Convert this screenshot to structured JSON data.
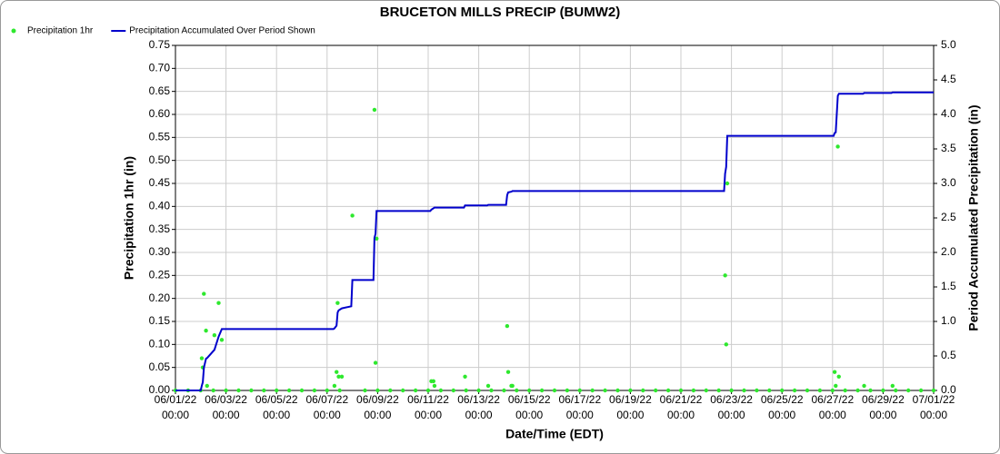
{
  "chart_data": {
    "type": "scatter-line",
    "title": "BRUCETON MILLS PRECIP (BUMW2)",
    "x_label": "Date/Time (EDT)",
    "y_label": "Precipitation 1hr (in)",
    "y2_label": "Period Accumulated Precipitation (in)",
    "grid": true,
    "legend": "top-left",
    "xlim": [
      "06/01/22 00:00",
      "07/01/22 00:00"
    ],
    "xticks": [
      "06/01/22 00:00",
      "06/03/22 00:00",
      "06/05/22 00:00",
      "06/07/22 00:00",
      "06/09/22 00:00",
      "06/11/22 00:00",
      "06/13/22 00:00",
      "06/15/22 00:00",
      "06/17/22 00:00",
      "06/19/22 00:00",
      "06/21/22 00:00",
      "06/23/22 00:00",
      "06/25/22 00:00",
      "06/27/22 00:00",
      "06/29/22 00:00",
      "07/01/22 00:00"
    ],
    "ylim": [
      0,
      0.75
    ],
    "yticks": [
      {
        "value": 0,
        "label": "0.00"
      },
      0.05,
      {
        "value": 0.1,
        "label": "0.10"
      },
      0.15,
      {
        "value": 0.2,
        "label": "0.20"
      },
      0.25,
      {
        "value": 0.3,
        "label": "0.30"
      },
      0.35,
      {
        "value": 0.4,
        "label": "0.40"
      },
      0.45,
      {
        "value": 0.5,
        "label": "0.50"
      },
      0.55,
      {
        "value": 0.6,
        "label": "0.60"
      },
      0.65,
      {
        "value": 0.7,
        "label": "0.70"
      },
      0.75
    ],
    "y2lim": [
      0,
      5
    ],
    "y2ticks": [
      {
        "value": 0,
        "label": "0.0"
      },
      0.5,
      {
        "value": 1,
        "label": "1.0"
      },
      1.5,
      {
        "value": 2,
        "label": "2.0"
      },
      2.5,
      {
        "value": 3,
        "label": "3.0"
      },
      3.5,
      {
        "value": 4,
        "label": "4.0"
      },
      4.5,
      {
        "value": 5,
        "label": "5.0"
      }
    ],
    "series": [
      {
        "name": "Precipitation 1hr",
        "type": "scatter",
        "color": "#2ee82e",
        "x": [
          "06/01/22 00:00",
          "06/01/22 12:00",
          "06/02/22 00:00",
          "06/02/22 12:00",
          "06/03/22 00:00",
          "06/03/22 12:00",
          "06/04/22 00:00",
          "06/04/22 12:00",
          "06/05/22 00:00",
          "06/05/22 12:00",
          "06/06/22 00:00",
          "06/06/22 12:00",
          "06/07/22 00:00",
          "06/07/22 12:00",
          "06/08/22 12:00",
          "06/09/22 00:00",
          "06/09/22 12:00",
          "06/10/22 00:00",
          "06/10/22 12:00",
          "06/11/22 00:00",
          "06/11/22 12:00",
          "06/12/22 00:00",
          "06/12/22 12:00",
          "06/13/22 00:00",
          "06/13/22 12:00",
          "06/14/22 00:00",
          "06/14/22 12:00",
          "06/15/22 00:00",
          "06/15/22 12:00",
          "06/16/22 00:00",
          "06/16/22 12:00",
          "06/17/22 00:00",
          "06/17/22 12:00",
          "06/18/22 00:00",
          "06/18/22 12:00",
          "06/19/22 00:00",
          "06/19/22 12:00",
          "06/20/22 00:00",
          "06/20/22 12:00",
          "06/21/22 00:00",
          "06/21/22 12:00",
          "06/22/22 00:00",
          "06/22/22 12:00",
          "06/23/22 00:00",
          "06/23/22 12:00",
          "06/24/22 00:00",
          "06/24/22 12:00",
          "06/25/22 00:00",
          "06/25/22 12:00",
          "06/26/22 00:00",
          "06/26/22 12:00",
          "06/27/22 00:00",
          "06/27/22 12:00",
          "06/28/22 00:00",
          "06/28/22 12:00",
          "06/29/22 00:00",
          "06/29/22 12:00",
          "06/30/22 00:00",
          "06/30/22 12:00",
          "07/01/22 00:00",
          "06/02/22 01:00",
          "06/02/22 02:00",
          "06/02/22 03:00",
          "06/02/22 05:00",
          "06/02/22 06:00",
          "06/02/22 13:00",
          "06/02/22 17:00",
          "06/02/22 20:00",
          "06/07/22 07:00",
          "06/07/22 09:00",
          "06/07/22 10:00",
          "06/07/22 11:00",
          "06/07/22 14:00",
          "06/08/22 00:00",
          "06/08/22 21:00",
          "06/08/22 22:00",
          "06/08/22 23:00",
          "06/11/22 03:00",
          "06/11/22 05:00",
          "06/11/22 06:00",
          "06/12/22 11:00",
          "06/13/22 09:00",
          "06/14/22 03:00",
          "06/14/22 04:00",
          "06/14/22 07:00",
          "06/14/22 08:00",
          "06/22/22 18:00",
          "06/22/22 19:00",
          "06/22/22 20:00",
          "06/27/22 02:00",
          "06/27/22 03:00",
          "06/27/22 05:00",
          "06/27/22 06:00",
          "06/28/22 06:00",
          "06/29/22 09:00"
        ],
        "values": [
          0,
          0,
          0,
          0,
          0,
          0,
          0,
          0,
          0,
          0,
          0,
          0,
          0,
          0,
          0,
          0,
          0,
          0,
          0,
          0,
          0,
          0,
          0,
          0,
          0,
          0,
          0,
          0,
          0,
          0,
          0,
          0,
          0,
          0,
          0,
          0,
          0,
          0,
          0,
          0,
          0,
          0,
          0,
          0,
          0,
          0,
          0,
          0,
          0,
          0,
          0,
          0,
          0,
          0,
          0,
          0,
          0,
          0,
          0,
          0,
          0.07,
          0.05,
          0.21,
          0.13,
          0.01,
          0.12,
          0.19,
          0.11,
          0.01,
          0.04,
          0.19,
          0.03,
          0.03,
          0.38,
          0.61,
          0.06,
          0.33,
          0.02,
          0.02,
          0.01,
          0.03,
          0.01,
          0.14,
          0.04,
          0.01,
          0.01,
          0.25,
          0.1,
          0.45,
          0.04,
          0.01,
          0.53,
          0.03,
          0.01,
          0.01
        ]
      },
      {
        "name": "Precipitation Accumulated Over Period Shown",
        "type": "line",
        "axis": "y2",
        "color": "#0000cc",
        "x": [
          "06/01/22 00:00",
          "06/02/22 00:00",
          "06/02/22 01:00",
          "06/02/22 02:00",
          "06/02/22 03:00",
          "06/02/22 05:00",
          "06/02/22 06:00",
          "06/02/22 13:00",
          "06/02/22 17:00",
          "06/02/22 20:00",
          "06/07/22 06:00",
          "06/07/22 07:00",
          "06/07/22 09:00",
          "06/07/22 10:00",
          "06/07/22 11:00",
          "06/07/22 14:00",
          "06/07/22 23:00",
          "06/08/22 00:00",
          "06/08/22 20:00",
          "06/08/22 21:00",
          "06/08/22 22:00",
          "06/08/22 23:00",
          "06/11/22 02:00",
          "06/11/22 03:00",
          "06/11/22 05:00",
          "06/11/22 06:00",
          "06/12/22 10:00",
          "06/12/22 11:00",
          "06/13/22 08:00",
          "06/13/22 09:00",
          "06/14/22 02:00",
          "06/14/22 03:00",
          "06/14/22 04:00",
          "06/14/22 07:00",
          "06/14/22 08:00",
          "06/22/22 17:00",
          "06/22/22 18:00",
          "06/22/22 19:00",
          "06/22/22 20:00",
          "06/27/22 01:00",
          "06/27/22 02:00",
          "06/27/22 03:00",
          "06/27/22 05:00",
          "06/27/22 06:00",
          "06/28/22 05:00",
          "06/28/22 06:00",
          "06/29/22 08:00",
          "06/29/22 09:00",
          "07/01/22 00:00"
        ],
        "values": [
          0,
          0,
          0.07,
          0.12,
          0.33,
          0.46,
          0.47,
          0.59,
          0.78,
          0.89,
          0.89,
          0.9,
          0.94,
          1.13,
          1.16,
          1.19,
          1.22,
          1.6,
          1.6,
          2.21,
          2.27,
          2.6,
          2.6,
          2.62,
          2.64,
          2.65,
          2.65,
          2.68,
          2.68,
          2.69,
          2.69,
          2.83,
          2.87,
          2.88,
          2.89,
          2.89,
          3.14,
          3.24,
          3.69,
          3.69,
          3.73,
          3.74,
          4.27,
          4.3,
          4.3,
          4.31,
          4.31,
          4.32,
          4.32
        ]
      }
    ]
  }
}
